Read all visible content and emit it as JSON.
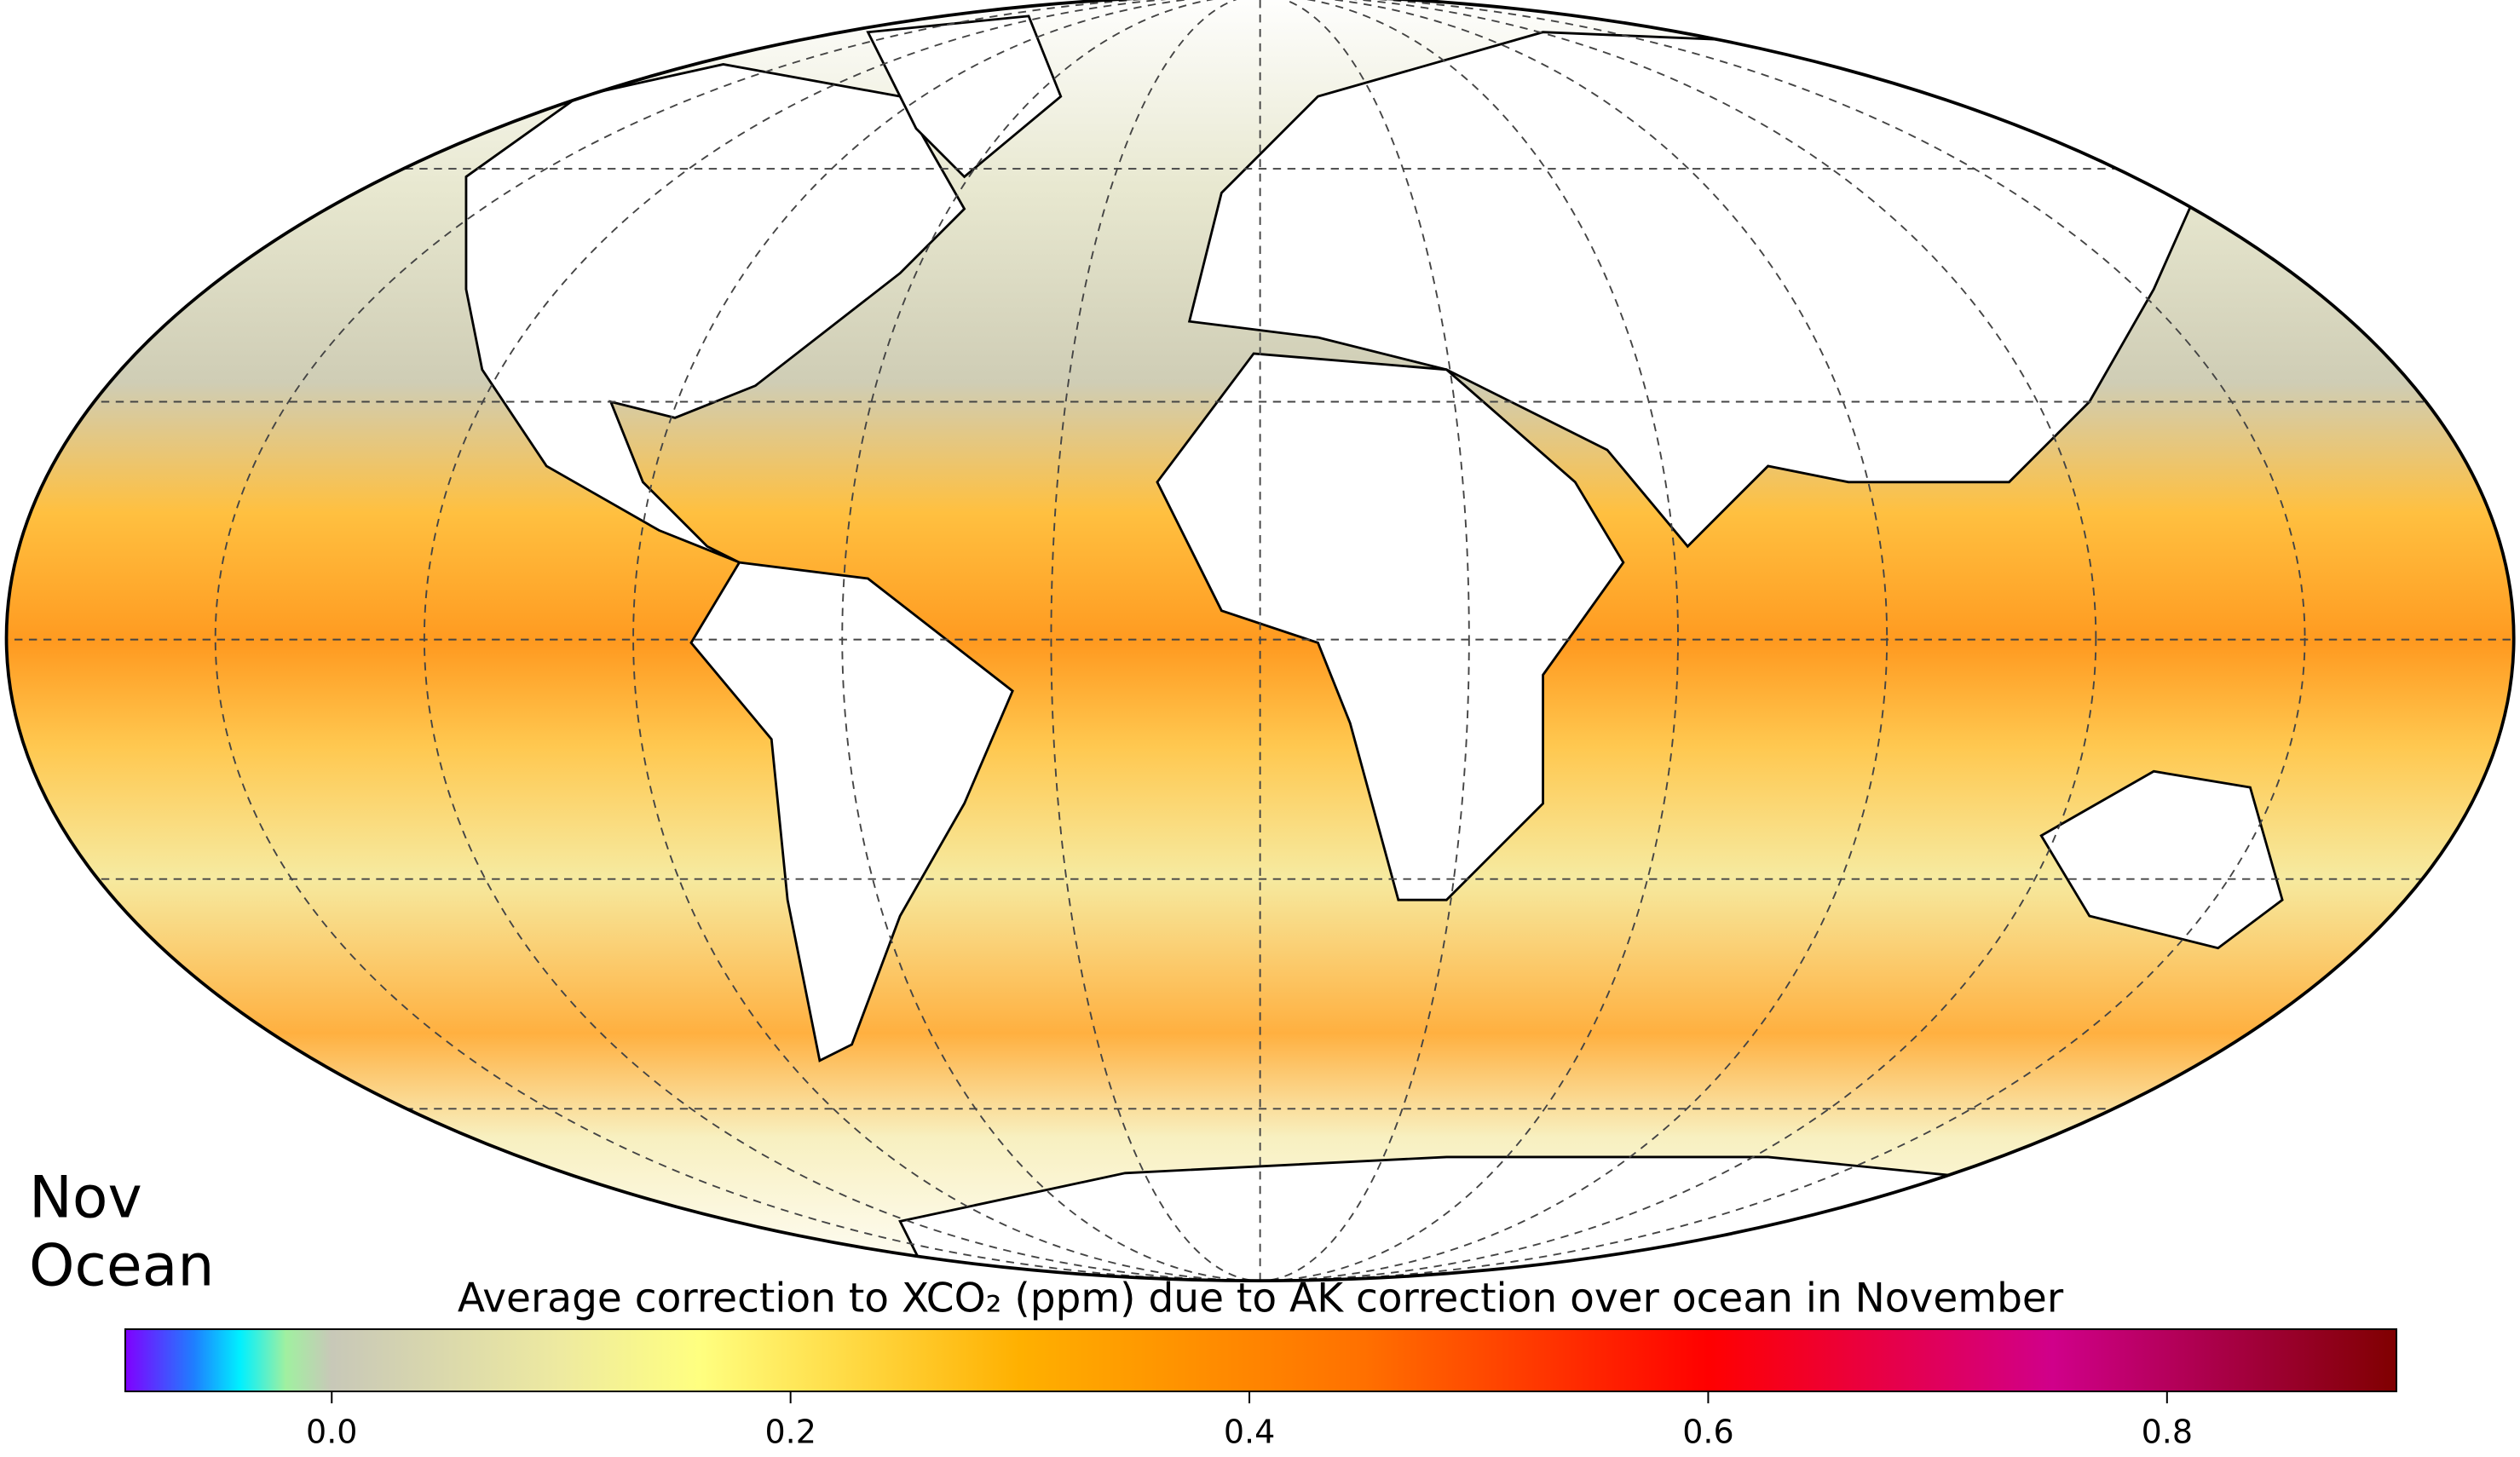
{
  "map": {
    "labels": [
      "Nov",
      "Ocean"
    ]
  },
  "colorbar": {
    "title": "Average correction to XCO₂ (ppm) due to AK correction over ocean in November",
    "range": [
      -0.09,
      0.9
    ],
    "ticks": [
      {
        "value": 0,
        "label": "0.0"
      },
      0.2,
      0.4,
      0.6,
      0.8
    ],
    "stops": [
      -0.09,
      -0.06,
      -0.04,
      -0.02,
      0.0,
      0.1,
      0.16,
      0.3,
      0.45,
      0.6,
      0.75,
      0.9
    ],
    "colors": [
      "#8000ff",
      "#1e7fff",
      "#00f0ff",
      "#a0f0a0",
      "#c8c8b8",
      "#eeeaa0",
      "#ffff80",
      "#ffb000",
      "#ff7000",
      "#ff0000",
      "#d0008a",
      "#800000"
    ]
  }
}
